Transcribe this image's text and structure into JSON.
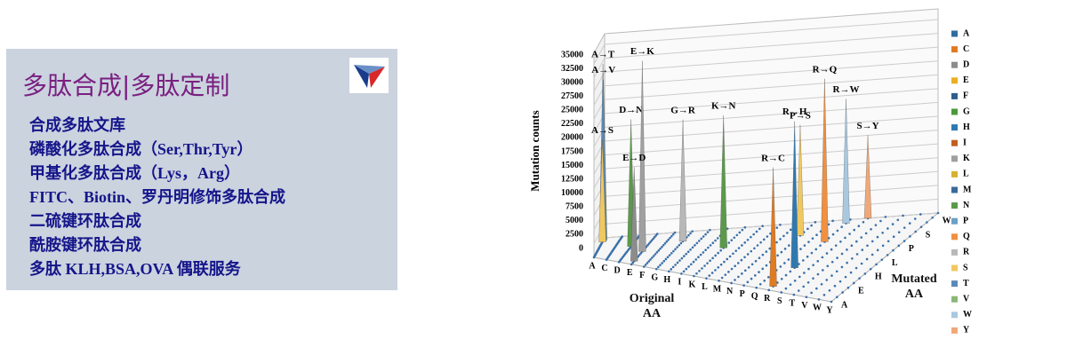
{
  "ad": {
    "title": "多肽合成|多肽定制",
    "lines": [
      "合成多肽文库",
      "磷酸化多肽合成（Ser,Thr,Tyr）",
      "甲基化多肽合成（Lys，Arg）",
      "FITC、Biotin、罗丹明修饰多肽合成",
      "二硫键环肽合成",
      "酰胺键环肽合成",
      "多肽 KLH,BSA,OVA 偶联服务"
    ]
  },
  "chart_data": {
    "type": "spike3d",
    "y_label": "Mutation counts",
    "x_label": "Original AA",
    "z_label": "Mutated AA",
    "categories": [
      "A",
      "C",
      "D",
      "E",
      "F",
      "G",
      "H",
      "I",
      "K",
      "L",
      "M",
      "N",
      "P",
      "Q",
      "R",
      "S",
      "T",
      "V",
      "W",
      "Y"
    ],
    "z_categories": [
      "A",
      "E",
      "H",
      "L",
      "P",
      "S",
      "W"
    ],
    "series": [
      {
        "name": "A",
        "color": "#2e6e9e"
      },
      {
        "name": "C",
        "color": "#e07b20"
      },
      {
        "name": "D",
        "color": "#8c8c8c"
      },
      {
        "name": "E",
        "color": "#e8b020"
      },
      {
        "name": "F",
        "color": "#2e5e8e"
      },
      {
        "name": "G",
        "color": "#4a9a3a"
      },
      {
        "name": "H",
        "color": "#2e7ab0"
      },
      {
        "name": "I",
        "color": "#c06020"
      },
      {
        "name": "K",
        "color": "#a0a0a0"
      },
      {
        "name": "L",
        "color": "#d8b030"
      },
      {
        "name": "M",
        "color": "#3a6a9a"
      },
      {
        "name": "N",
        "color": "#5a9a4a"
      },
      {
        "name": "P",
        "color": "#6aa0c8"
      },
      {
        "name": "Q",
        "color": "#f09040"
      },
      {
        "name": "R",
        "color": "#b8b8b8"
      },
      {
        "name": "S",
        "color": "#f0c860"
      },
      {
        "name": "T",
        "color": "#5a8ab8"
      },
      {
        "name": "V",
        "color": "#8ab878"
      },
      {
        "name": "W",
        "color": "#a8c8e0"
      },
      {
        "name": "Y",
        "color": "#f0a878"
      }
    ],
    "spikes": {
      "labels": [
        "E→K",
        "A→T",
        "A→V",
        "D→N",
        "A→S",
        "E→D",
        "G→R",
        "K→N",
        "R→C",
        "R→H",
        "R→Q",
        "P→S",
        "R→W",
        "S→Y"
      ],
      "values": [
        34500,
        32000,
        29000,
        23000,
        18500,
        17000,
        22000,
        24000,
        21500,
        26500,
        29500,
        20000,
        22500,
        15000
      ]
    },
    "ylim": [
      0,
      35000
    ],
    "yticks": [
      0,
      2500,
      5000,
      7500,
      10000,
      12500,
      15000,
      17500,
      20000,
      22500,
      25000,
      27500,
      30000,
      32500,
      35000
    ]
  }
}
